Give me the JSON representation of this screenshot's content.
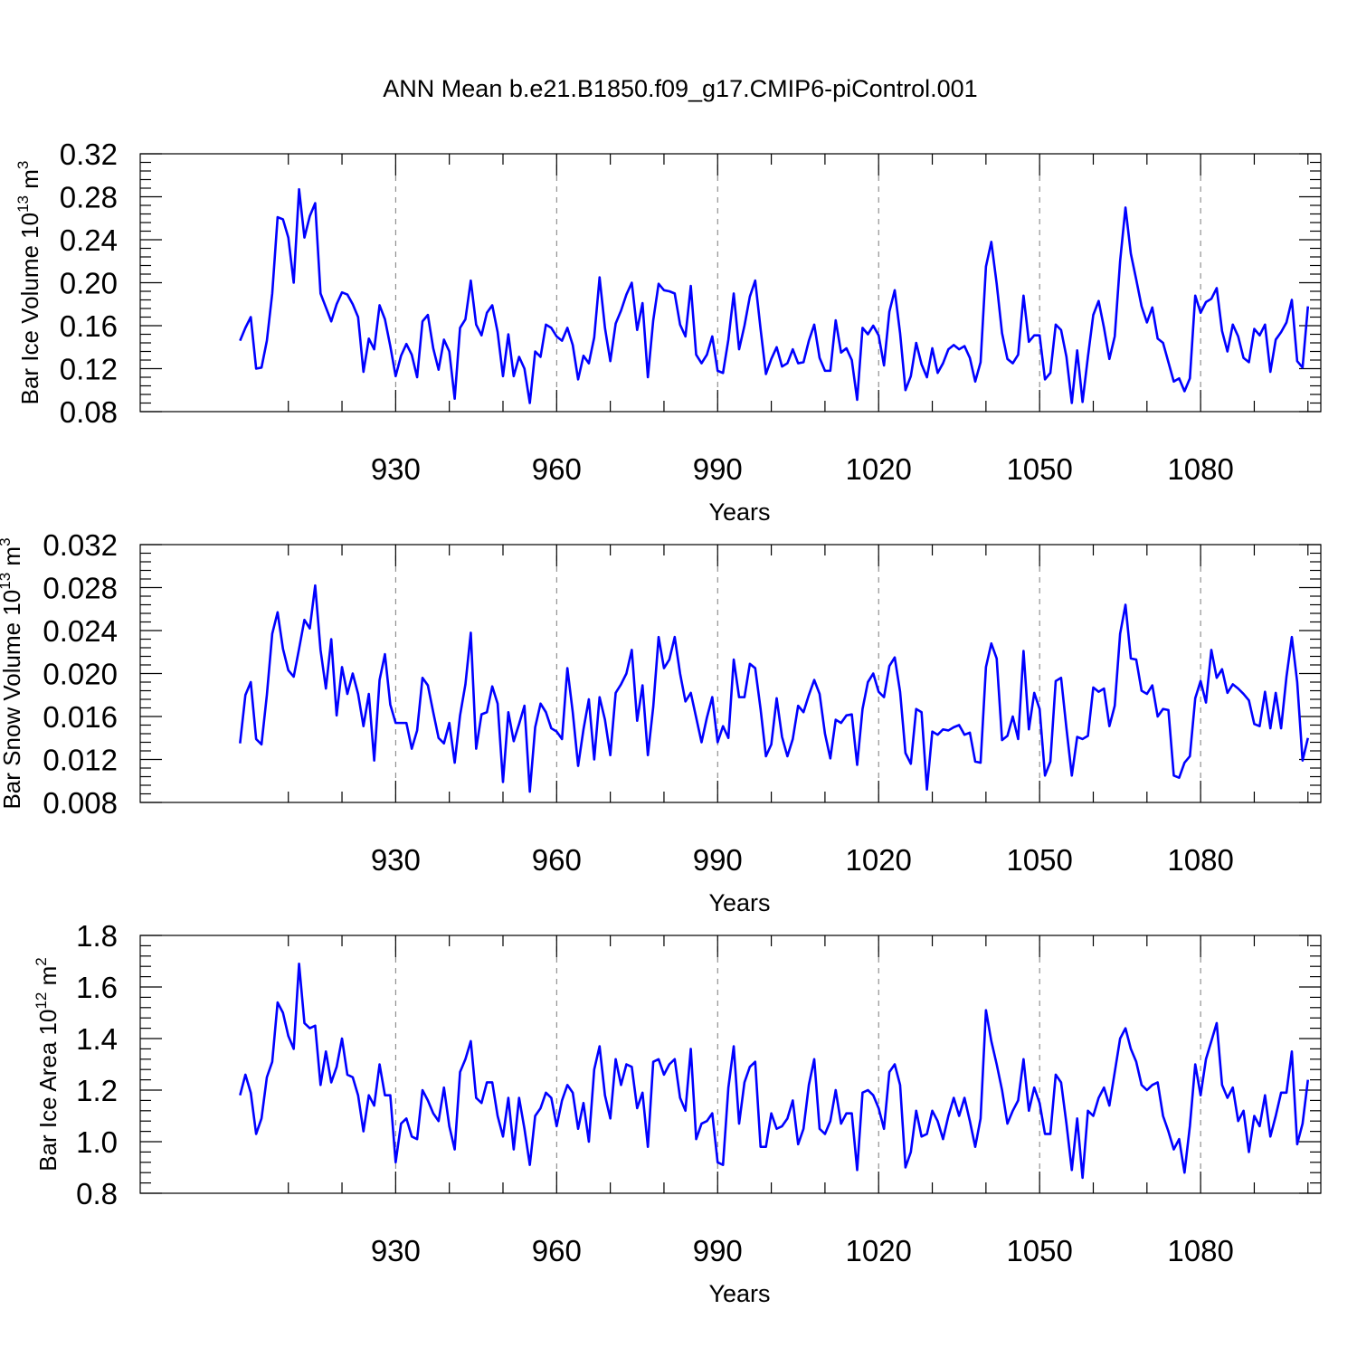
{
  "title": "ANN Mean b.e21.B1850.f09_g17.CMIP6-piControl.001",
  "chart_data": [
    {
      "type": "line",
      "title": "ANN Mean b.e21.B1850.f09_g17.CMIP6-piControl.001",
      "xlabel": "Years",
      "ylabel": "Bar Ice Volume",
      "ylabel_unit": "10",
      "ylabel_exp": "13",
      "ylabel_unit2": "m",
      "ylabel_exp2": "3",
      "xlim": [
        901,
        1100
      ],
      "ylim": [
        0.08,
        0.32
      ],
      "xticks": [
        930,
        960,
        990,
        1020,
        1050,
        1080
      ],
      "xtick_labels": [
        "930",
        "960",
        "990",
        "1020",
        "1050",
        "1080"
      ],
      "yticks": [
        0.08,
        0.12,
        0.16,
        0.2,
        0.24,
        0.28,
        0.32
      ],
      "ytick_labels": [
        "0.08",
        "0.12",
        "0.16",
        "0.20",
        "0.24",
        "0.28",
        "0.32"
      ],
      "x_start": 901,
      "values": [
        0.146,
        0.158,
        0.168,
        0.12,
        0.121,
        0.146,
        0.19,
        0.261,
        0.259,
        0.242,
        0.2,
        0.287,
        0.242,
        0.262,
        0.274,
        0.19,
        0.177,
        0.164,
        0.18,
        0.191,
        0.189,
        0.18,
        0.168,
        0.117,
        0.148,
        0.138,
        0.179,
        0.166,
        0.141,
        0.113,
        0.132,
        0.143,
        0.133,
        0.112,
        0.164,
        0.17,
        0.139,
        0.119,
        0.147,
        0.136,
        0.092,
        0.158,
        0.166,
        0.202,
        0.161,
        0.151,
        0.172,
        0.179,
        0.154,
        0.113,
        0.152,
        0.113,
        0.131,
        0.12,
        0.088,
        0.136,
        0.131,
        0.161,
        0.158,
        0.15,
        0.146,
        0.158,
        0.142,
        0.11,
        0.132,
        0.125,
        0.149,
        0.205,
        0.158,
        0.127,
        0.162,
        0.174,
        0.189,
        0.2,
        0.156,
        0.181,
        0.112,
        0.165,
        0.199,
        0.193,
        0.192,
        0.19,
        0.161,
        0.15,
        0.197,
        0.133,
        0.125,
        0.133,
        0.15,
        0.118,
        0.116,
        0.147,
        0.19,
        0.138,
        0.16,
        0.187,
        0.202,
        0.157,
        0.115,
        0.129,
        0.14,
        0.122,
        0.125,
        0.138,
        0.125,
        0.126,
        0.146,
        0.161,
        0.13,
        0.118,
        0.118,
        0.165,
        0.135,
        0.139,
        0.128,
        0.091,
        0.158,
        0.152,
        0.16,
        0.151,
        0.123,
        0.173,
        0.193,
        0.153,
        0.1,
        0.113,
        0.144,
        0.124,
        0.112,
        0.139,
        0.116,
        0.125,
        0.138,
        0.142,
        0.138,
        0.141,
        0.13,
        0.108,
        0.126,
        0.215,
        0.238,
        0.199,
        0.153,
        0.129,
        0.125,
        0.133,
        0.188,
        0.145,
        0.151,
        0.151,
        0.11,
        0.116,
        0.161,
        0.156,
        0.131,
        0.088,
        0.137,
        0.089,
        0.131,
        0.17,
        0.183,
        0.158,
        0.129,
        0.15,
        0.22,
        0.27,
        0.227,
        0.203,
        0.178,
        0.163,
        0.177,
        0.148,
        0.144,
        0.126,
        0.108,
        0.111,
        0.099,
        0.111,
        0.188,
        0.172,
        0.182,
        0.185,
        0.195,
        0.155,
        0.136,
        0.161,
        0.15,
        0.13,
        0.126,
        0.157,
        0.151,
        0.161,
        0.117,
        0.147,
        0.154,
        0.163,
        0.184,
        0.127,
        0.121,
        0.178
      ]
    },
    {
      "type": "line",
      "xlabel": "Years",
      "ylabel": "Bar Snow Volume",
      "ylabel_unit": "10",
      "ylabel_exp": "13",
      "ylabel_unit2": "m",
      "ylabel_exp2": "3",
      "xlim": [
        901,
        1100
      ],
      "ylim": [
        0.008,
        0.032
      ],
      "xticks": [
        930,
        960,
        990,
        1020,
        1050,
        1080
      ],
      "xtick_labels": [
        "930",
        "960",
        "990",
        "1020",
        "1050",
        "1080"
      ],
      "yticks": [
        0.008,
        0.012,
        0.016,
        0.02,
        0.024,
        0.028,
        0.032
      ],
      "ytick_labels": [
        "0.008",
        "0.012",
        "0.016",
        "0.020",
        "0.024",
        "0.028",
        "0.032"
      ],
      "x_start": 901,
      "values": [
        0.0135,
        0.018,
        0.0192,
        0.0139,
        0.0134,
        0.018,
        0.0237,
        0.0257,
        0.0223,
        0.0203,
        0.0197,
        0.0223,
        0.025,
        0.0242,
        0.0282,
        0.0222,
        0.0186,
        0.0232,
        0.0161,
        0.0206,
        0.0181,
        0.02,
        0.0181,
        0.0151,
        0.0181,
        0.0119,
        0.0194,
        0.0218,
        0.0171,
        0.0154,
        0.0154,
        0.0154,
        0.013,
        0.0147,
        0.0196,
        0.0189,
        0.0164,
        0.014,
        0.0135,
        0.0154,
        0.0117,
        0.0161,
        0.019,
        0.0238,
        0.013,
        0.0162,
        0.0164,
        0.0188,
        0.0172,
        0.0099,
        0.0164,
        0.0137,
        0.0153,
        0.017,
        0.009,
        0.015,
        0.0172,
        0.0164,
        0.0149,
        0.0146,
        0.0139,
        0.0205,
        0.0164,
        0.0114,
        0.0148,
        0.0176,
        0.012,
        0.0178,
        0.0157,
        0.0124,
        0.0182,
        0.019,
        0.02,
        0.0222,
        0.0156,
        0.0189,
        0.0124,
        0.0169,
        0.0234,
        0.0205,
        0.0213,
        0.0234,
        0.02,
        0.0174,
        0.0182,
        0.0159,
        0.0136,
        0.0159,
        0.0178,
        0.0136,
        0.0151,
        0.014,
        0.0213,
        0.0178,
        0.0178,
        0.0209,
        0.0205,
        0.0167,
        0.0123,
        0.0134,
        0.0177,
        0.0141,
        0.0123,
        0.0139,
        0.017,
        0.0164,
        0.018,
        0.0194,
        0.0181,
        0.0144,
        0.0121,
        0.0157,
        0.0154,
        0.0161,
        0.0162,
        0.0115,
        0.0167,
        0.0192,
        0.02,
        0.0183,
        0.0178,
        0.0207,
        0.0215,
        0.0183,
        0.0126,
        0.0116,
        0.0167,
        0.0164,
        0.0092,
        0.0146,
        0.0143,
        0.0148,
        0.0147,
        0.015,
        0.0152,
        0.0143,
        0.0145,
        0.0118,
        0.0117,
        0.0206,
        0.0228,
        0.0214,
        0.0138,
        0.0142,
        0.016,
        0.0139,
        0.0221,
        0.0148,
        0.0182,
        0.0167,
        0.0105,
        0.0118,
        0.0193,
        0.0196,
        0.0149,
        0.0105,
        0.0141,
        0.0139,
        0.0142,
        0.0187,
        0.0183,
        0.0186,
        0.0151,
        0.017,
        0.0237,
        0.0264,
        0.0214,
        0.0213,
        0.0184,
        0.0181,
        0.0189,
        0.016,
        0.0167,
        0.0166,
        0.0105,
        0.0103,
        0.0117,
        0.0123,
        0.0177,
        0.0193,
        0.0173,
        0.0222,
        0.0196,
        0.0204,
        0.0182,
        0.019,
        0.0186,
        0.0181,
        0.0175,
        0.0153,
        0.0151,
        0.0183,
        0.0149,
        0.0182,
        0.0149,
        0.0197,
        0.0234,
        0.0192,
        0.0119,
        0.014
      ]
    },
    {
      "type": "line",
      "xlabel": "Years",
      "ylabel": "Bar Ice Area",
      "ylabel_unit": "10",
      "ylabel_exp": "12",
      "ylabel_unit2": "m",
      "ylabel_exp2": "2",
      "xlim": [
        901,
        1100
      ],
      "ylim": [
        0.8,
        1.8
      ],
      "xticks": [
        930,
        960,
        990,
        1020,
        1050,
        1080
      ],
      "xtick_labels": [
        "930",
        "960",
        "990",
        "1020",
        "1050",
        "1080"
      ],
      "yticks": [
        0.8,
        1.0,
        1.2,
        1.4,
        1.6,
        1.8
      ],
      "ytick_labels": [
        "0.8",
        "1.0",
        "1.2",
        "1.4",
        "1.6",
        "1.8"
      ],
      "x_start": 901,
      "values": [
        1.18,
        1.26,
        1.19,
        1.03,
        1.09,
        1.25,
        1.31,
        1.54,
        1.5,
        1.41,
        1.36,
        1.69,
        1.46,
        1.44,
        1.45,
        1.22,
        1.35,
        1.23,
        1.29,
        1.4,
        1.26,
        1.25,
        1.18,
        1.04,
        1.18,
        1.14,
        1.3,
        1.18,
        1.18,
        0.92,
        1.07,
        1.09,
        1.02,
        1.01,
        1.2,
        1.16,
        1.11,
        1.08,
        1.21,
        1.06,
        0.97,
        1.27,
        1.32,
        1.39,
        1.17,
        1.15,
        1.23,
        1.23,
        1.1,
        1.02,
        1.17,
        0.97,
        1.17,
        1.05,
        0.91,
        1.1,
        1.13,
        1.19,
        1.17,
        1.06,
        1.16,
        1.22,
        1.19,
        1.05,
        1.15,
        1.0,
        1.28,
        1.37,
        1.18,
        1.09,
        1.32,
        1.22,
        1.3,
        1.29,
        1.13,
        1.19,
        0.98,
        1.31,
        1.32,
        1.26,
        1.3,
        1.32,
        1.17,
        1.12,
        1.36,
        1.01,
        1.07,
        1.08,
        1.11,
        0.92,
        0.91,
        1.21,
        1.37,
        1.07,
        1.23,
        1.29,
        1.31,
        0.98,
        0.98,
        1.11,
        1.05,
        1.06,
        1.09,
        1.16,
        0.99,
        1.05,
        1.22,
        1.32,
        1.05,
        1.03,
        1.08,
        1.2,
        1.07,
        1.11,
        1.11,
        0.89,
        1.19,
        1.2,
        1.18,
        1.13,
        1.05,
        1.27,
        1.3,
        1.22,
        0.9,
        0.96,
        1.12,
        1.02,
        1.03,
        1.12,
        1.08,
        1.01,
        1.1,
        1.17,
        1.1,
        1.17,
        1.08,
        0.98,
        1.09,
        1.51,
        1.39,
        1.3,
        1.2,
        1.07,
        1.12,
        1.16,
        1.32,
        1.12,
        1.21,
        1.15,
        1.03,
        1.03,
        1.26,
        1.23,
        1.07,
        0.89,
        1.09,
        0.86,
        1.12,
        1.1,
        1.17,
        1.21,
        1.14,
        1.27,
        1.4,
        1.44,
        1.36,
        1.31,
        1.22,
        1.2,
        1.22,
        1.23,
        1.1,
        1.04,
        0.97,
        1.01,
        0.88,
        1.06,
        1.3,
        1.18,
        1.32,
        1.39,
        1.46,
        1.22,
        1.17,
        1.21,
        1.08,
        1.12,
        0.96,
        1.1,
        1.06,
        1.18,
        1.02,
        1.1,
        1.19,
        1.19,
        1.35,
        0.99,
        1.07,
        1.24
      ]
    }
  ]
}
